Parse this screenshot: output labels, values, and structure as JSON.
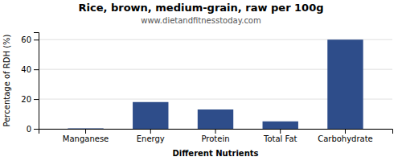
{
  "chart_data": {
    "type": "bar",
    "title": "Rice, brown, medium-grain, raw per 100g",
    "subtitle": "www.dietandfitnesstoday.com",
    "xlabel": "Different Nutrients",
    "ylabel": "Percentage of RDH (%)",
    "categories": [
      "Manganese",
      "Energy",
      "Protein",
      "Total Fat",
      "Carbohydrate"
    ],
    "values": [
      0.3,
      18,
      13,
      5,
      60
    ],
    "color": "#2e4d8a",
    "ylim": [
      0,
      65
    ],
    "yticks": [
      0,
      20,
      40,
      60
    ],
    "grid": true
  }
}
